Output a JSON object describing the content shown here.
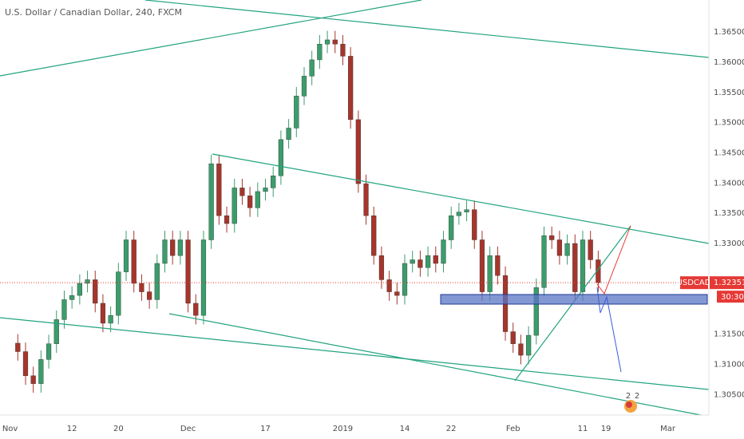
{
  "chart_data": {
    "type": "candlestick",
    "title": "U.S. Dollar / Canadian Dollar, 240, FXCM",
    "up_color": "#3a9d6b",
    "down_color": "#a6352b",
    "x": [
      0,
      1,
      2,
      3,
      4,
      5,
      6,
      7,
      8,
      9,
      10,
      11,
      12,
      13,
      14,
      15,
      16,
      17,
      18,
      19,
      20,
      21,
      22,
      23,
      24,
      25,
      26,
      27,
      28,
      29,
      30,
      31,
      32,
      33,
      34,
      35,
      36,
      37,
      38,
      39,
      40,
      41,
      42,
      43,
      44,
      45,
      46,
      47,
      48,
      49,
      50,
      51,
      52,
      53,
      54,
      55,
      56,
      57,
      58,
      59,
      60,
      61,
      62,
      63,
      64,
      65,
      66,
      67,
      68,
      69,
      70,
      71,
      72,
      73,
      74,
      75
    ],
    "open": [
      1.3135,
      1.3121,
      1.3081,
      1.3068,
      1.3108,
      1.3134,
      1.3174,
      1.3207,
      1.3214,
      1.3234,
      1.324,
      1.3201,
      1.3168,
      1.3181,
      1.3253,
      1.3306,
      1.3234,
      1.322,
      1.3207,
      1.3267,
      1.3306,
      1.328,
      1.3306,
      1.3201,
      1.3181,
      1.3306,
      1.3432,
      1.3346,
      1.3333,
      1.3392,
      1.3379,
      1.3359,
      1.3386,
      1.3392,
      1.3412,
      1.3472,
      1.3491,
      1.3544,
      1.3577,
      1.3604,
      1.363,
      1.3637,
      1.363,
      1.361,
      1.3505,
      1.3399,
      1.3346,
      1.328,
      1.324,
      1.322,
      1.3214,
      1.3267,
      1.3273,
      1.326,
      1.328,
      1.3267,
      1.3306,
      1.3346,
      1.3352,
      1.3356,
      1.3306,
      1.322,
      1.328,
      1.3247,
      1.3154,
      1.3134,
      1.3115,
      1.3148,
      1.3227,
      1.3313,
      1.3306,
      1.328,
      1.33,
      1.322,
      1.3306,
      1.3273
    ],
    "high": [
      1.315,
      1.3136,
      1.3096,
      1.3123,
      1.3149,
      1.3189,
      1.3222,
      1.3229,
      1.3249,
      1.3255,
      1.3255,
      1.3216,
      1.3196,
      1.3268,
      1.3321,
      1.3321,
      1.3249,
      1.3235,
      1.3282,
      1.3321,
      1.3321,
      1.3321,
      1.3321,
      1.3216,
      1.3321,
      1.3447,
      1.3447,
      1.3361,
      1.3407,
      1.3407,
      1.3394,
      1.3401,
      1.3407,
      1.3427,
      1.3487,
      1.3506,
      1.3559,
      1.3592,
      1.3619,
      1.3645,
      1.3652,
      1.3652,
      1.3645,
      1.3625,
      1.352,
      1.3414,
      1.3361,
      1.3295,
      1.3255,
      1.3235,
      1.3282,
      1.3288,
      1.3288,
      1.3295,
      1.3295,
      1.3321,
      1.3361,
      1.3367,
      1.3371,
      1.3371,
      1.3321,
      1.3295,
      1.3295,
      1.3262,
      1.3169,
      1.3149,
      1.3163,
      1.3242,
      1.3328,
      1.3328,
      1.3321,
      1.3315,
      1.3315,
      1.3321,
      1.3321,
      1.3288
    ],
    "low": [
      1.3106,
      1.3066,
      1.3053,
      1.3053,
      1.3093,
      1.3119,
      1.3159,
      1.3192,
      1.3199,
      1.3219,
      1.3186,
      1.3153,
      1.3153,
      1.3166,
      1.3238,
      1.3219,
      1.3205,
      1.3192,
      1.3192,
      1.3252,
      1.3265,
      1.3265,
      1.3186,
      1.3166,
      1.3166,
      1.3291,
      1.3331,
      1.3318,
      1.3318,
      1.3364,
      1.3344,
      1.3344,
      1.3371,
      1.3377,
      1.3397,
      1.3457,
      1.3476,
      1.3529,
      1.3562,
      1.3589,
      1.3615,
      1.3615,
      1.3595,
      1.349,
      1.3384,
      1.3331,
      1.3265,
      1.3225,
      1.3205,
      1.3199,
      1.3199,
      1.3252,
      1.3245,
      1.3245,
      1.3252,
      1.3252,
      1.3291,
      1.3331,
      1.3337,
      1.3291,
      1.3205,
      1.3205,
      1.3232,
      1.3139,
      1.3119,
      1.31,
      1.31,
      1.3133,
      1.3212,
      1.3291,
      1.3265,
      1.3265,
      1.3205,
      1.3205,
      1.3258,
      1.322
    ],
    "close": [
      1.3121,
      1.3081,
      1.3068,
      1.3108,
      1.3134,
      1.3174,
      1.3207,
      1.3214,
      1.3234,
      1.324,
      1.3201,
      1.3168,
      1.3181,
      1.3253,
      1.3306,
      1.3234,
      1.322,
      1.3207,
      1.3267,
      1.3306,
      1.328,
      1.3306,
      1.3201,
      1.3181,
      1.3306,
      1.3432,
      1.3346,
      1.3333,
      1.3392,
      1.3379,
      1.3359,
      1.3386,
      1.3392,
      1.3412,
      1.3472,
      1.3491,
      1.3544,
      1.3577,
      1.3604,
      1.363,
      1.3637,
      1.363,
      1.361,
      1.3505,
      1.3399,
      1.3346,
      1.328,
      1.324,
      1.322,
      1.3214,
      1.3267,
      1.3273,
      1.326,
      1.328,
      1.3267,
      1.3306,
      1.3346,
      1.3352,
      1.3356,
      1.3306,
      1.322,
      1.328,
      1.3247,
      1.3154,
      1.3134,
      1.3115,
      1.3148,
      1.3227,
      1.3313,
      1.3306,
      1.328,
      1.33,
      1.322,
      1.3306,
      1.3273,
      1.32351
    ],
    "xlim": [
      -2.3,
      89.3
    ],
    "xticks": [
      {
        "value": -1,
        "label": "Nov"
      },
      {
        "value": 7,
        "label": "12"
      },
      {
        "value": 13,
        "label": "20"
      },
      {
        "value": 22,
        "label": "Dec"
      },
      {
        "value": 32,
        "label": "17"
      },
      {
        "value": 42,
        "label": "2019"
      },
      {
        "value": 50,
        "label": "14"
      },
      {
        "value": 56,
        "label": "22"
      },
      {
        "value": 64,
        "label": "Feb"
      },
      {
        "value": 73,
        "label": "11"
      },
      {
        "value": 76,
        "label": "19"
      },
      {
        "value": 84,
        "label": "Mar"
      }
    ],
    "ylim": [
      1.3016,
      1.3703
    ],
    "yticks": [
      {
        "value": 1.305,
        "label": "1.30500"
      },
      {
        "value": 1.31,
        "label": "1.31000"
      },
      {
        "value": 1.315,
        "label": "1.31500"
      },
      {
        "value": 1.33,
        "label": "1.33000"
      },
      {
        "value": 1.335,
        "label": "1.33500"
      },
      {
        "value": 1.34,
        "label": "1.34000"
      },
      {
        "value": 1.345,
        "label": "1.34500"
      },
      {
        "value": 1.35,
        "label": "1.35000"
      },
      {
        "value": 1.355,
        "label": "1.35500"
      },
      {
        "value": 1.36,
        "label": "1.36000"
      },
      {
        "value": 1.365,
        "label": "1.36500"
      }
    ],
    "symbol_tag": "USDCAD",
    "last_price": 1.32351,
    "last_price_color": "#e53935",
    "countdown": "30:30",
    "event_counts": [
      2,
      2
    ]
  }
}
